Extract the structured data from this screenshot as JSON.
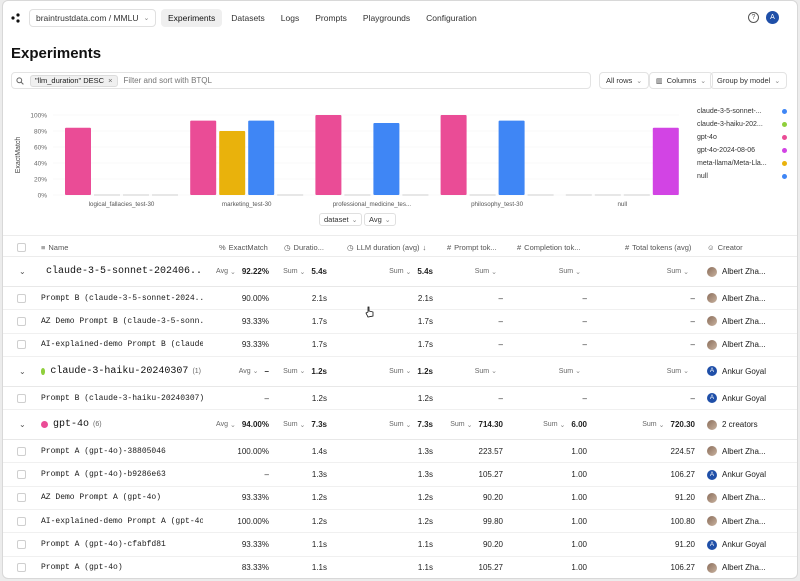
{
  "nav": {
    "org": "braintrustdata.com / MMLU",
    "tabs": [
      "Experiments",
      "Datasets",
      "Logs",
      "Prompts",
      "Playgrounds",
      "Configuration"
    ],
    "avatar_letter": "A"
  },
  "page_title": "Experiments",
  "filter": {
    "chip": "\"llm_duration\" DESC",
    "placeholder": "Filter and sort with BTQL",
    "all_rows": "All rows",
    "columns": "Columns",
    "group_by": "Group by model"
  },
  "chart_data": {
    "type": "bar",
    "ylabel": "ExactMatch",
    "yticks": [
      "100%",
      "80%",
      "60%",
      "40%",
      "20%",
      "0%"
    ],
    "ylim": [
      0,
      100
    ],
    "categories": [
      "logical_fallacies_test-30",
      "marketing_test-30",
      "professional_medicine_tes...",
      "philosophy_test-30",
      "null"
    ],
    "series": [
      {
        "name": "claude-3-5-sonnet-...",
        "color": "#ea4c96",
        "values": [
          84,
          93,
          100,
          100,
          0
        ]
      },
      {
        "name": "claude-3-haiku-202...",
        "color": "#e9b20c",
        "values": [
          0,
          80,
          0,
          0,
          0
        ]
      },
      {
        "name": "gpt-4o",
        "color": "#3f86f5",
        "values": [
          0,
          93,
          90,
          93,
          0
        ]
      },
      {
        "name": "gpt-4o-2024-08-06",
        "color": "#d244e4",
        "values": [
          0,
          0,
          0,
          0,
          84
        ]
      }
    ],
    "legend": [
      {
        "name": "claude-3-5-sonnet-...",
        "color": "#3f86f5"
      },
      {
        "name": "claude-3-haiku-202...",
        "color": "#8fcf3c"
      },
      {
        "name": "gpt-4o",
        "color": "#ea4c96"
      },
      {
        "name": "gpt-4o-2024-08-06",
        "color": "#d244e4"
      },
      {
        "name": "meta-llama/Meta-Lla...",
        "color": "#e9b20c"
      },
      {
        "name": "null",
        "color": "#3f86f5"
      }
    ],
    "x_select": "dataset",
    "agg_select": "Avg"
  },
  "columns": {
    "name": "Name",
    "exact": "ExactMatch",
    "duration": "Duratio...",
    "llm": "LLM duration (avg)",
    "prompt": "Prompt tok...",
    "completion": "Completion tok...",
    "total": "Total tokens (avg)",
    "creator": "Creator"
  },
  "rows": [
    {
      "kind": "group",
      "name": "claude-3-5-sonnet-202406...",
      "count": "",
      "color": "#3f86f5",
      "exact_agg": "Avg",
      "exact": "92.22%",
      "dur_agg": "Sum",
      "dur": "5.4s",
      "llm_agg": "Sum",
      "llm": "5.4s",
      "prompt_agg": "Sum",
      "prompt": "",
      "comp_agg": "Sum",
      "comp": "",
      "total_agg": "Sum",
      "total": "",
      "creator": "Albert Zha...",
      "av": "img"
    },
    {
      "kind": "exp",
      "name": "Prompt B (claude-3-5-sonnet-2024...",
      "exact": "90.00%",
      "dur": "2.1s",
      "llm": "2.1s",
      "prompt": "–",
      "comp": "–",
      "total": "–",
      "creator": "Albert Zha...",
      "av": "img"
    },
    {
      "kind": "exp",
      "name": "AZ Demo Prompt B (claude-3-5-sonn...",
      "exact": "93.33%",
      "dur": "1.7s",
      "llm": "1.7s",
      "prompt": "–",
      "comp": "–",
      "total": "–",
      "creator": "Albert Zha...",
      "av": "img"
    },
    {
      "kind": "exp",
      "name": "AI-explained-demo Prompt B (claude...",
      "exact": "93.33%",
      "dur": "1.7s",
      "llm": "1.7s",
      "prompt": "–",
      "comp": "–",
      "total": "–",
      "creator": "Albert Zha...",
      "av": "img"
    },
    {
      "kind": "group",
      "name": "claude-3-haiku-20240307",
      "count": "(1)",
      "color": "#8fcf3c",
      "exact_agg": "Avg",
      "exact": "–",
      "dur_agg": "Sum",
      "dur": "1.2s",
      "llm_agg": "Sum",
      "llm": "1.2s",
      "prompt_agg": "Sum",
      "prompt": "",
      "comp_agg": "Sum",
      "comp": "",
      "total_agg": "Sum",
      "total": "",
      "creator": "Ankur Goyal",
      "av": "A"
    },
    {
      "kind": "exp",
      "name": "Prompt B (claude-3-haiku-20240307)",
      "exact": "–",
      "dur": "1.2s",
      "llm": "1.2s",
      "prompt": "–",
      "comp": "–",
      "total": "–",
      "creator": "Ankur Goyal",
      "av": "A"
    },
    {
      "kind": "group",
      "name": "gpt-4o",
      "count": "(6)",
      "color": "#ea4c96",
      "exact_agg": "Avg",
      "exact": "94.00%",
      "dur_agg": "Sum",
      "dur": "7.3s",
      "llm_agg": "Sum",
      "llm": "7.3s",
      "prompt_agg": "Sum",
      "prompt": "714.30",
      "comp_agg": "Sum",
      "comp": "6.00",
      "total_agg": "Sum",
      "total": "720.30",
      "creator": "2 creators",
      "av": "img"
    },
    {
      "kind": "exp",
      "name": "Prompt A (gpt-4o)-38805046",
      "exact": "100.00%",
      "dur": "1.4s",
      "llm": "1.3s",
      "prompt": "223.57",
      "comp": "1.00",
      "total": "224.57",
      "creator": "Albert Zha...",
      "av": "img"
    },
    {
      "kind": "exp",
      "name": "Prompt A (gpt-4o)-b9286e63",
      "exact": "–",
      "dur": "1.3s",
      "llm": "1.3s",
      "prompt": "105.27",
      "comp": "1.00",
      "total": "106.27",
      "creator": "Ankur Goyal",
      "av": "A"
    },
    {
      "kind": "exp",
      "name": "AZ Demo Prompt A (gpt-4o)",
      "exact": "93.33%",
      "dur": "1.2s",
      "llm": "1.2s",
      "prompt": "90.20",
      "comp": "1.00",
      "total": "91.20",
      "creator": "Albert Zha...",
      "av": "img"
    },
    {
      "kind": "exp",
      "name": "AI-explained-demo Prompt A (gpt-4o)",
      "exact": "100.00%",
      "dur": "1.2s",
      "llm": "1.2s",
      "prompt": "99.80",
      "comp": "1.00",
      "total": "100.80",
      "creator": "Albert Zha...",
      "av": "img"
    },
    {
      "kind": "exp",
      "name": "Prompt A (gpt-4o)-cfabfd81",
      "exact": "93.33%",
      "dur": "1.1s",
      "llm": "1.1s",
      "prompt": "90.20",
      "comp": "1.00",
      "total": "91.20",
      "creator": "Ankur Goyal",
      "av": "A"
    },
    {
      "kind": "exp",
      "name": "Prompt A (gpt-4o)",
      "exact": "83.33%",
      "dur": "1.1s",
      "llm": "1.1s",
      "prompt": "105.27",
      "comp": "1.00",
      "total": "106.27",
      "creator": "Albert Zha...",
      "av": "img"
    }
  ]
}
